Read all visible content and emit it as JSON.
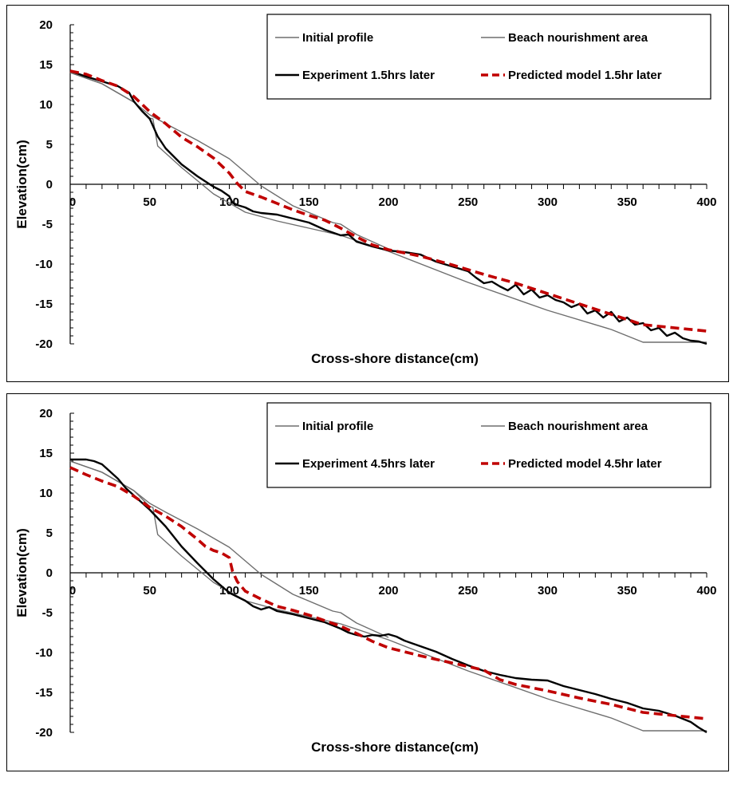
{
  "chart_data": [
    {
      "type": "line",
      "xlabel": "Cross-shore distance(cm)",
      "ylabel": "Elevation(cm)",
      "xlim": [
        0,
        400
      ],
      "ylim": [
        -20,
        20
      ],
      "x_ticks": [
        "0",
        "50",
        "100",
        "150",
        "200",
        "250",
        "300",
        "350",
        "400"
      ],
      "y_ticks": [
        "20",
        "15",
        "10",
        "5",
        "0",
        "-5",
        "-10",
        "-15",
        "-20"
      ],
      "grid": false,
      "legend_position": "top-right",
      "series": [
        {
          "name": "Initial profile",
          "color": "#6e6e6e",
          "style": "solid-thin",
          "x": [
            0,
            20,
            40,
            50,
            52,
            55,
            70,
            90,
            110,
            130,
            150,
            170,
            200,
            250,
            300,
            340,
            360,
            400
          ],
          "y": [
            14,
            12.6,
            10.3,
            8.3,
            8.2,
            4.8,
            2.1,
            -1.2,
            -3.5,
            -4.6,
            -5.5,
            -6.4,
            -8.4,
            -12.3,
            -15.8,
            -18.2,
            -19.8,
            -19.8
          ]
        },
        {
          "name": "Beach nourishment area",
          "color": "#6e6e6e",
          "style": "solid-thin",
          "x": [
            0,
            20,
            40,
            50,
            60,
            80,
            100,
            120,
            140,
            165,
            170,
            180,
            200
          ],
          "y": [
            14,
            12.6,
            10.3,
            8.7,
            7.6,
            5.5,
            3.2,
            -0.2,
            -2.7,
            -4.8,
            -5,
            -6.3,
            -8.1
          ]
        },
        {
          "name": "Experiment 1.5hrs later",
          "color": "#000000",
          "style": "solid-thick",
          "x": [
            0,
            10,
            20,
            30,
            37,
            40,
            45,
            50,
            55,
            60,
            70,
            80,
            90,
            95,
            100,
            102,
            105,
            110,
            115,
            120,
            130,
            140,
            150,
            160,
            170,
            175,
            180,
            190,
            200,
            210,
            220,
            230,
            240,
            250,
            255,
            260,
            265,
            270,
            275,
            280,
            285,
            290,
            295,
            300,
            305,
            310,
            315,
            320,
            325,
            330,
            335,
            340,
            345,
            350,
            355,
            360,
            365,
            370,
            375,
            380,
            385,
            390,
            395,
            400
          ],
          "y": [
            14.2,
            13.5,
            12.9,
            12.3,
            11.5,
            10.4,
            9.2,
            8.2,
            6,
            4.5,
            2.5,
            1,
            -0.3,
            -0.8,
            -1.5,
            -2.3,
            -2.6,
            -2.9,
            -3.4,
            -3.6,
            -3.8,
            -4.3,
            -4.8,
            -5.7,
            -6.4,
            -6.3,
            -7.2,
            -7.8,
            -8.3,
            -8.5,
            -8.8,
            -9.7,
            -10.3,
            -10.9,
            -11.7,
            -12.4,
            -12.2,
            -12.8,
            -13.3,
            -12.6,
            -13.8,
            -13.2,
            -14.2,
            -13.9,
            -14.5,
            -14.8,
            -15.4,
            -15,
            -16.2,
            -15.8,
            -16.7,
            -16,
            -17.2,
            -16.7,
            -17.6,
            -17.4,
            -18.3,
            -18,
            -19,
            -18.6,
            -19.3,
            -19.6,
            -19.7,
            -20
          ]
        },
        {
          "name": "Predicted model 1.5hr later",
          "color": "#c00000",
          "style": "dashed",
          "x": [
            0,
            10,
            20,
            30,
            40,
            50,
            60,
            70,
            80,
            90,
            100,
            105,
            110,
            120,
            130,
            140,
            150,
            160,
            170,
            180,
            190,
            200,
            220,
            240,
            260,
            280,
            300,
            320,
            340,
            360,
            380,
            400
          ],
          "y": [
            14.2,
            13.8,
            13,
            12.3,
            11,
            9.1,
            7.6,
            5.9,
            4.7,
            3.3,
            1.4,
            0.1,
            -0.9,
            -1.6,
            -2.4,
            -3.2,
            -3.9,
            -4.5,
            -5.5,
            -6.6,
            -7.6,
            -8.2,
            -9,
            -10.1,
            -11.3,
            -12.4,
            -13.7,
            -15,
            -16.3,
            -17.6,
            -18,
            -18.4
          ]
        }
      ]
    },
    {
      "type": "line",
      "xlabel": "Cross-shore distance(cm)",
      "ylabel": "Elevation(cm)",
      "xlim": [
        0,
        400
      ],
      "ylim": [
        -20,
        20
      ],
      "x_ticks": [
        "0",
        "50",
        "100",
        "150",
        "200",
        "250",
        "300",
        "350",
        "400"
      ],
      "y_ticks": [
        "20",
        "15",
        "10",
        "5",
        "0",
        "-5",
        "-10",
        "-15",
        "-20"
      ],
      "grid": false,
      "legend_position": "top-right",
      "series": [
        {
          "name": "Initial profile",
          "color": "#6e6e6e",
          "style": "solid-thin",
          "x": [
            0,
            20,
            40,
            50,
            52,
            55,
            70,
            90,
            110,
            130,
            150,
            170,
            200,
            250,
            300,
            340,
            360,
            400
          ],
          "y": [
            14,
            12.6,
            10.3,
            8.3,
            8.2,
            4.8,
            2.1,
            -1.2,
            -3.5,
            -4.6,
            -5.5,
            -6.4,
            -8.4,
            -12.3,
            -15.8,
            -18.2,
            -19.8,
            -19.8
          ]
        },
        {
          "name": "Beach nourishment area",
          "color": "#6e6e6e",
          "style": "solid-thin",
          "x": [
            0,
            20,
            40,
            50,
            60,
            80,
            100,
            120,
            140,
            165,
            170,
            180,
            200
          ],
          "y": [
            14,
            12.6,
            10.3,
            8.7,
            7.6,
            5.5,
            3.2,
            -0.2,
            -2.7,
            -4.8,
            -5,
            -6.3,
            -8.1
          ]
        },
        {
          "name": "Experiment 4.5hrs later",
          "color": "#000000",
          "style": "solid-thick",
          "x": [
            0,
            10,
            15,
            20,
            25,
            30,
            35,
            40,
            50,
            60,
            70,
            80,
            90,
            100,
            110,
            115,
            120,
            125,
            130,
            140,
            150,
            160,
            165,
            170,
            175,
            180,
            185,
            190,
            195,
            200,
            205,
            210,
            220,
            230,
            240,
            250,
            260,
            270,
            280,
            290,
            300,
            310,
            320,
            330,
            340,
            350,
            360,
            370,
            380,
            390,
            395,
            400
          ],
          "y": [
            14.2,
            14.2,
            14,
            13.6,
            12.7,
            11.8,
            10.6,
            9.7,
            7.9,
            5.8,
            3.3,
            1.2,
            -0.8,
            -2.5,
            -3.5,
            -4.2,
            -4.6,
            -4.3,
            -4.8,
            -5.2,
            -5.7,
            -6.2,
            -6.6,
            -7,
            -7.5,
            -7.8,
            -8,
            -7.8,
            -7.9,
            -7.7,
            -8,
            -8.5,
            -9.2,
            -9.9,
            -10.8,
            -11.6,
            -12.3,
            -12.8,
            -13.2,
            -13.4,
            -13.5,
            -14.2,
            -14.7,
            -15.2,
            -15.8,
            -16.3,
            -17,
            -17.3,
            -17.9,
            -18.7,
            -19.4,
            -20
          ]
        },
        {
          "name": "Predicted model 4.5hr later",
          "color": "#c00000",
          "style": "dashed",
          "x": [
            0,
            10,
            20,
            30,
            40,
            50,
            60,
            70,
            80,
            85,
            90,
            95,
            100,
            102,
            105,
            110,
            120,
            130,
            140,
            150,
            160,
            170,
            180,
            190,
            200,
            220,
            240,
            260,
            270,
            280,
            300,
            320,
            340,
            360,
            380,
            400
          ],
          "y": [
            13.2,
            12.3,
            11.5,
            10.8,
            9.6,
            8.2,
            7.1,
            5.8,
            4.2,
            3.3,
            2.8,
            2.5,
            1.9,
            0.2,
            -1.1,
            -2.3,
            -3.3,
            -4.2,
            -4.7,
            -5.3,
            -6,
            -6.7,
            -7.6,
            -8.6,
            -9.4,
            -10.4,
            -11.3,
            -12.2,
            -13.4,
            -14,
            -14.8,
            -15.7,
            -16.5,
            -17.5,
            -17.9,
            -18.3
          ]
        }
      ]
    }
  ]
}
